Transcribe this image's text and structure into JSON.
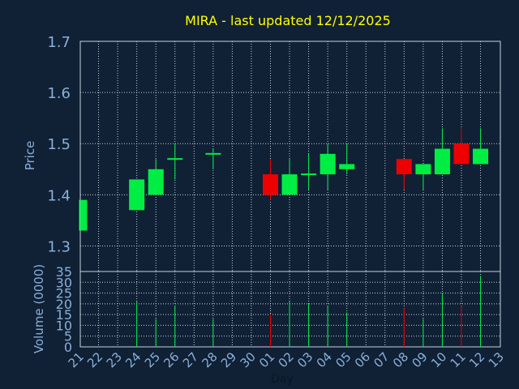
{
  "chart_data": {
    "type": "candlestick",
    "title": "MIRA - last updated 12/12/2025",
    "xlabel": "Day",
    "price_panel": {
      "ylabel": "Price",
      "ylim": [
        1.25,
        1.7
      ],
      "yticks": [
        "1.3",
        "1.4",
        "1.5",
        "1.6",
        "1.7"
      ],
      "ytick_values": [
        1.3,
        1.4,
        1.5,
        1.6,
        1.7
      ]
    },
    "volume_panel": {
      "ylabel": "Volume (0000)",
      "ylim": [
        0,
        35
      ],
      "yticks": [
        "0",
        "5",
        "10",
        "15",
        "20",
        "25",
        "30",
        "35"
      ],
      "ytick_values": [
        0,
        5,
        10,
        15,
        20,
        25,
        30,
        35
      ]
    },
    "x_ticks": [
      "21",
      "22",
      "23",
      "24",
      "25",
      "26",
      "27",
      "28",
      "29",
      "30",
      "01",
      "02",
      "03",
      "04",
      "05",
      "06",
      "07",
      "08",
      "09",
      "10",
      "11",
      "12",
      "13"
    ],
    "grid": true,
    "colors": {
      "background": "#102035",
      "title": "#ffff00",
      "axis_text": "#8ab0d8",
      "grid": "#c8d2dc",
      "up": "#00ee44",
      "down": "#ee0000"
    },
    "candles": [
      {
        "day": "21",
        "open": 1.33,
        "high": 1.39,
        "low": 1.33,
        "close": 1.39,
        "volume": 0
      },
      {
        "day": "24",
        "open": 1.37,
        "high": 1.43,
        "low": 1.37,
        "close": 1.43,
        "volume": 21
      },
      {
        "day": "25",
        "open": 1.4,
        "high": 1.47,
        "low": 1.4,
        "close": 1.45,
        "volume": 13
      },
      {
        "day": "26",
        "open": 1.47,
        "high": 1.5,
        "low": 1.43,
        "close": 1.47,
        "volume": 19
      },
      {
        "day": "28",
        "open": 1.48,
        "high": 1.49,
        "low": 1.45,
        "close": 1.48,
        "volume": 13
      },
      {
        "day": "01",
        "open": 1.44,
        "high": 1.47,
        "low": 1.39,
        "close": 1.4,
        "volume": 15
      },
      {
        "day": "02",
        "open": 1.4,
        "high": 1.47,
        "low": 1.4,
        "close": 1.44,
        "volume": 21
      },
      {
        "day": "03",
        "open": 1.44,
        "high": 1.48,
        "low": 1.41,
        "close": 1.44,
        "volume": 20
      },
      {
        "day": "04",
        "open": 1.44,
        "high": 1.5,
        "low": 1.41,
        "close": 1.48,
        "volume": 19
      },
      {
        "day": "05",
        "open": 1.45,
        "high": 1.5,
        "low": 1.44,
        "close": 1.46,
        "volume": 16
      },
      {
        "day": "08",
        "open": 1.47,
        "high": 1.47,
        "low": 1.41,
        "close": 1.44,
        "volume": 18
      },
      {
        "day": "09",
        "open": 1.44,
        "high": 1.46,
        "low": 1.41,
        "close": 1.46,
        "volume": 13
      },
      {
        "day": "10",
        "open": 1.44,
        "high": 1.53,
        "low": 1.44,
        "close": 1.49,
        "volume": 25
      },
      {
        "day": "11",
        "open": 1.5,
        "high": 1.53,
        "low": 1.46,
        "close": 1.46,
        "volume": 19
      },
      {
        "day": "12",
        "open": 1.46,
        "high": 1.53,
        "low": 1.46,
        "close": 1.49,
        "volume": 33
      }
    ]
  }
}
